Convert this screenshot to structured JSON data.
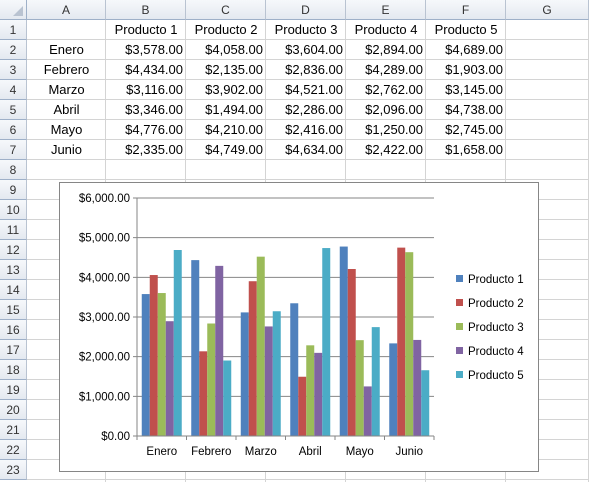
{
  "sheet": {
    "column_headers": [
      "A",
      "B",
      "C",
      "D",
      "E",
      "F",
      "G"
    ],
    "row_numbers": [
      "1",
      "2",
      "3",
      "4",
      "5",
      "6",
      "7",
      "8",
      "9",
      "10",
      "11",
      "12",
      "13",
      "14",
      "15",
      "16",
      "17",
      "18",
      "19",
      "20",
      "21",
      "22",
      "23"
    ],
    "table": {
      "header": [
        "Producto 1",
        "Producto 2",
        "Producto 3",
        "Producto 4",
        "Producto 5"
      ],
      "rows": [
        {
          "label": "Enero",
          "cells": [
            "$3,578.00",
            "$4,058.00",
            "$3,604.00",
            "$2,894.00",
            "$4,689.00"
          ]
        },
        {
          "label": "Febrero",
          "cells": [
            "$4,434.00",
            "$2,135.00",
            "$2,836.00",
            "$4,289.00",
            "$1,903.00"
          ]
        },
        {
          "label": "Marzo",
          "cells": [
            "$3,116.00",
            "$3,902.00",
            "$4,521.00",
            "$2,762.00",
            "$3,145.00"
          ]
        },
        {
          "label": "Abril",
          "cells": [
            "$3,346.00",
            "$1,494.00",
            "$2,286.00",
            "$2,096.00",
            "$4,738.00"
          ]
        },
        {
          "label": "Mayo",
          "cells": [
            "$4,776.00",
            "$4,210.00",
            "$2,416.00",
            "$1,250.00",
            "$2,745.00"
          ]
        },
        {
          "label": "Junio",
          "cells": [
            "$2,335.00",
            "$4,749.00",
            "$4,634.00",
            "$2,422.00",
            "$1,658.00"
          ]
        }
      ]
    }
  },
  "chart_data": {
    "type": "bar",
    "categories": [
      "Enero",
      "Febrero",
      "Marzo",
      "Abril",
      "Mayo",
      "Junio"
    ],
    "series": [
      {
        "name": "Producto 1",
        "color": "#4f81bd",
        "values": [
          3578,
          4434,
          3116,
          3346,
          4776,
          2335
        ]
      },
      {
        "name": "Producto 2",
        "color": "#c0504d",
        "values": [
          4058,
          2135,
          3902,
          1494,
          4210,
          4749
        ]
      },
      {
        "name": "Producto 3",
        "color": "#9bbb59",
        "values": [
          3604,
          2836,
          4521,
          2286,
          2416,
          4634
        ]
      },
      {
        "name": "Producto 4",
        "color": "#8064a2",
        "values": [
          2894,
          4289,
          2762,
          2096,
          1250,
          2422
        ]
      },
      {
        "name": "Producto 5",
        "color": "#4bacc6",
        "values": [
          4689,
          1903,
          3145,
          4738,
          2745,
          1658
        ]
      }
    ],
    "ylim": [
      0,
      6000
    ],
    "y_ticks": [
      "$0.00",
      "$1,000.00",
      "$2,000.00",
      "$3,000.00",
      "$4,000.00",
      "$5,000.00",
      "$6,000.00"
    ],
    "grid": true,
    "legend": "right",
    "title": "",
    "xlabel": "",
    "ylabel": ""
  }
}
